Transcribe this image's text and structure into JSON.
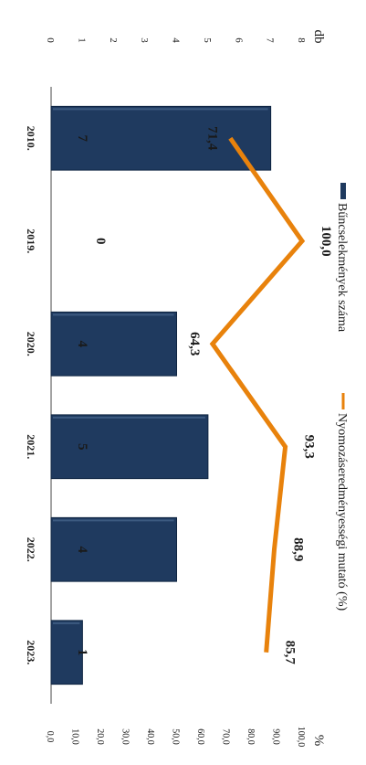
{
  "chart_data": {
    "type": "bar",
    "orientation": "rotated-90-clockwise",
    "categories": [
      "2010.",
      "2019.",
      "2020.",
      "2021.",
      "2022.",
      "2023."
    ],
    "series": [
      {
        "name": "Bűncselekmények száma",
        "type": "bar",
        "axis": "left",
        "values": [
          7,
          0,
          4,
          5,
          4,
          1
        ],
        "data_labels": [
          "7",
          "0",
          "4",
          "5",
          "4",
          "1"
        ]
      },
      {
        "name": "Nyomozáseredményességi mutató (%)",
        "type": "line",
        "axis": "right",
        "values": [
          71.4,
          100.0,
          64.3,
          93.3,
          88.9,
          85.7
        ],
        "data_labels": [
          "71,4",
          "100,0",
          "64,3",
          "93,3",
          "88,9",
          "85,7"
        ]
      }
    ],
    "y_left": {
      "label": "db",
      "range": [
        0,
        8
      ],
      "ticks": [
        "0",
        "1",
        "2",
        "3",
        "4",
        "5",
        "6",
        "7",
        "8"
      ]
    },
    "y_right": {
      "label": "%",
      "range": [
        0,
        100
      ],
      "ticks": [
        "0,0",
        "10,0",
        "20,0",
        "30,0",
        "40,0",
        "50,0",
        "60,0",
        "70,0",
        "80,0",
        "90,0",
        "100,0"
      ]
    },
    "legend_position": "top",
    "grid": false,
    "colors": {
      "bar": "#1f3a5f",
      "bar_edge": "#0f2440",
      "line": "#e8820c"
    }
  }
}
